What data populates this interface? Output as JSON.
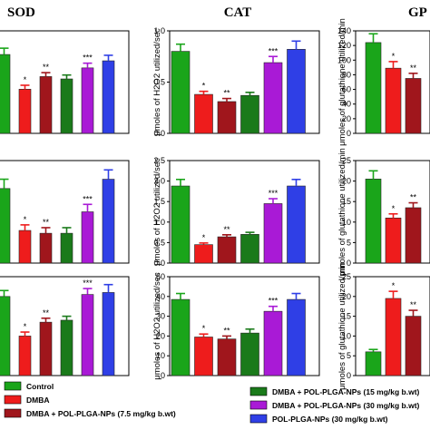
{
  "colors": {
    "Control": "#1aa51a",
    "DMBA": "#ee1c1c",
    "DMBA + POL-PLGA-NPs (7.5 mg/kg b.wt)": "#a0161c",
    "DMBA + POL-PLGA-NPs (15 mg/kg b.wt)": "#1a7a1a",
    "DMBA + POL-PLGA-NPs (30 mg/kg b.wt)": "#a91ad6",
    "POL-PLGA-NPs (30 mg/kg b.wt)": "#2f3fe6"
  },
  "legend": [
    {
      "label": "Control",
      "color": "#1aa51a"
    },
    {
      "label": "DMBA",
      "color": "#ee1c1c"
    },
    {
      "label": "DMBA + POL-PLGA-NPs (7.5 mg/kg b.wt)",
      "color": "#a0161c"
    },
    {
      "label": "DMBA + POL-PLGA-NPs (15 mg/kg b.wt)",
      "color": "#1a7a1a"
    },
    {
      "label": "DMBA + POL-PLGA-NPs (30 mg/kg b.wt)",
      "color": "#a91ad6"
    },
    {
      "label": "POL-PLGA-NPs (30 mg/kg b.wt)",
      "color": "#2f3fe6"
    }
  ],
  "column_titles": [
    "SOD",
    "CAT",
    "GP"
  ],
  "chart_data": [
    {
      "type": "bar",
      "panel": "SOD row 1",
      "title": "SOD",
      "series": [
        {
          "values": [
            100,
            56,
            72,
            69,
            83,
            92
          ],
          "errors": [
            8,
            5,
            5,
            5,
            6,
            7
          ],
          "marks": [
            "",
            "*",
            "**",
            "",
            "***",
            ""
          ]
        }
      ],
      "ylim": [
        0,
        130
      ]
    },
    {
      "type": "bar",
      "panel": "CAT row 1",
      "title": "CAT",
      "ylabel": "μmoles of H2O2 utilized/sec",
      "yticks": [
        "0.0",
        "0.5",
        "1.0"
      ],
      "series": [
        {
          "values": [
            0.8,
            0.38,
            0.31,
            0.37,
            0.69,
            0.82
          ],
          "errors": [
            0.07,
            0.03,
            0.03,
            0.03,
            0.06,
            0.08
          ],
          "marks": [
            "",
            "*",
            "**",
            "",
            "***",
            ""
          ]
        }
      ],
      "ylim": [
        0,
        1.0
      ]
    },
    {
      "type": "bar",
      "panel": "GPx row 1",
      "title": "GP",
      "ylabel": "μmoles of glutathione utilized/min",
      "yticks": [
        "0",
        "20",
        "40",
        "60",
        "80",
        "100",
        "120",
        "140"
      ],
      "series": [
        {
          "values": [
            124,
            89,
            75
          ],
          "errors": [
            12,
            9,
            7
          ],
          "marks": [
            "",
            "*",
            "**"
          ]
        }
      ],
      "ylim": [
        0,
        140
      ]
    },
    {
      "type": "bar",
      "panel": "SOD row 2",
      "series": [
        {
          "values": [
            1.8,
            1.35,
            1.32,
            1.32,
            1.55,
            1.9
          ],
          "errors": [
            0.1,
            0.06,
            0.06,
            0.06,
            0.08,
            0.1
          ],
          "marks": [
            "",
            "*",
            "**",
            "",
            "***",
            ""
          ]
        }
      ],
      "ylim": [
        1.0,
        2.1
      ]
    },
    {
      "type": "bar",
      "panel": "CAT row 2",
      "ylabel": "μmoles of H2O2 utilized/sec",
      "yticks": [
        "0.0",
        "0.5",
        "1.0",
        "1.5",
        "2.0",
        "2.5"
      ],
      "series": [
        {
          "values": [
            1.88,
            0.45,
            0.64,
            0.7,
            1.45,
            1.88
          ],
          "errors": [
            0.16,
            0.04,
            0.05,
            0.05,
            0.12,
            0.16
          ],
          "marks": [
            "",
            "*",
            "**",
            "",
            "***",
            ""
          ]
        }
      ],
      "ylim": [
        0,
        2.5
      ]
    },
    {
      "type": "bar",
      "panel": "GPx row 2",
      "ylabel": "μmoles of glutathione utilized/min",
      "yticks": [
        "0",
        "5",
        "10",
        "15",
        "20",
        "25"
      ],
      "series": [
        {
          "values": [
            20.5,
            11,
            13.5
          ],
          "errors": [
            2,
            1,
            1.2
          ],
          "marks": [
            "",
            "*",
            "**"
          ]
        }
      ],
      "ylim": [
        0,
        25
      ]
    },
    {
      "type": "bar",
      "panel": "SOD row 3",
      "series": [
        {
          "values": [
            40,
            20,
            27,
            28,
            41,
            42
          ],
          "errors": [
            3,
            2,
            2,
            2,
            3,
            4
          ],
          "marks": [
            "",
            "*",
            "**",
            "",
            "***",
            ""
          ]
        }
      ],
      "ylim": [
        0,
        50
      ]
    },
    {
      "type": "bar",
      "panel": "CAT row 3",
      "ylabel": "μmoles of H2O2 utilized/sec",
      "yticks": [
        "0",
        "10",
        "20",
        "30",
        "40",
        "50"
      ],
      "series": [
        {
          "values": [
            38.5,
            19.5,
            18.5,
            21.5,
            32.5,
            38.5
          ],
          "errors": [
            3,
            1.5,
            1.5,
            2,
            2.5,
            3
          ],
          "marks": [
            "",
            "*",
            "**",
            "",
            "***",
            ""
          ]
        }
      ],
      "ylim": [
        0,
        50
      ]
    },
    {
      "type": "bar",
      "panel": "GPx row 3",
      "ylabel": "μmoles of glutathione utilized/min",
      "yticks": [
        "0",
        "5",
        "10",
        "15",
        "20",
        "25"
      ],
      "series": [
        {
          "values": [
            6,
            19.5,
            15
          ],
          "errors": [
            0.6,
            1.8,
            1.5
          ],
          "marks": [
            "",
            "*",
            "**"
          ]
        }
      ],
      "ylim": [
        0,
        25
      ]
    }
  ]
}
